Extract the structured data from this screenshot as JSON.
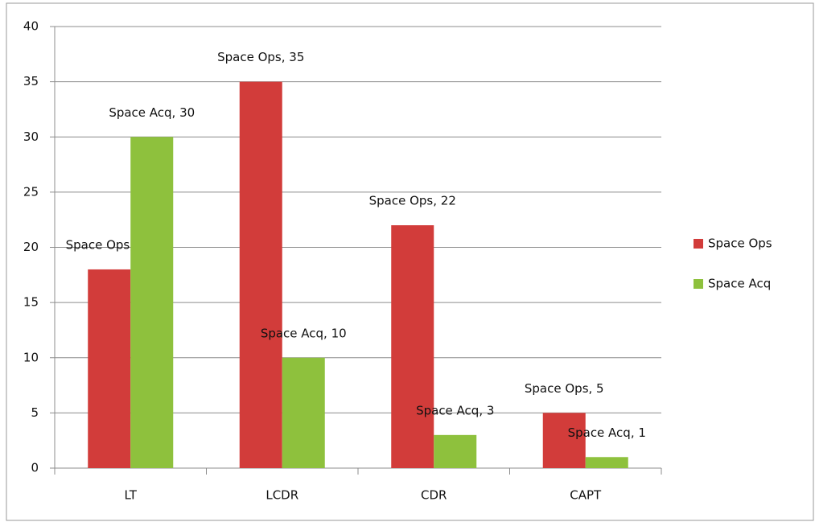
{
  "chart_data": {
    "type": "bar",
    "categories": [
      "LT",
      "LCDR",
      "CDR",
      "CAPT"
    ],
    "series": [
      {
        "name": "Space Ops",
        "color": "#d23c3a",
        "values": [
          18,
          35,
          22,
          5
        ],
        "value_labels": [
          "Space Ops, 18",
          "Space Ops, 35",
          "Space Ops, 22",
          "Space Ops, 5"
        ]
      },
      {
        "name": "Space Acq",
        "color": "#8ec13d",
        "values": [
          30,
          10,
          3,
          1
        ],
        "value_labels": [
          "Space Acq, 30",
          "Space Acq, 10",
          "Space Acq, 3",
          "Space Acq, 1"
        ]
      }
    ],
    "ylim": [
      0,
      40
    ],
    "yticks": [
      0,
      5,
      10,
      15,
      20,
      25,
      30,
      35,
      40
    ],
    "grid": true,
    "legend": "right"
  }
}
